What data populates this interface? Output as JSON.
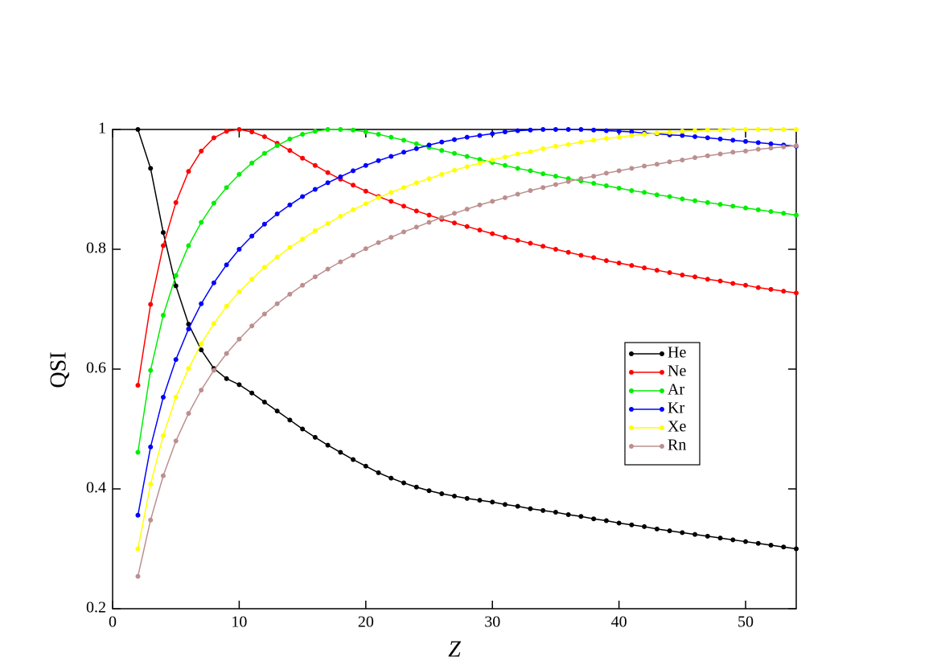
{
  "chart_data": {
    "type": "line",
    "xlabel": "Z",
    "ylabel": "QSI",
    "x": [
      2,
      3,
      4,
      5,
      6,
      7,
      8,
      9,
      10,
      11,
      12,
      13,
      14,
      15,
      16,
      17,
      18,
      19,
      20,
      21,
      22,
      23,
      24,
      25,
      26,
      27,
      28,
      29,
      30,
      31,
      32,
      33,
      34,
      35,
      36,
      37,
      38,
      39,
      40,
      41,
      42,
      43,
      44,
      45,
      46,
      47,
      48,
      49,
      50,
      51,
      52,
      53,
      54
    ],
    "xlim": [
      0,
      54
    ],
    "xticks": [
      0,
      10,
      20,
      30,
      40,
      50
    ],
    "ylim": [
      0.2,
      1.0
    ],
    "yticks": [
      0.2,
      0.4,
      0.6,
      0.8,
      1
    ],
    "legend": "right",
    "series": [
      {
        "name": "He",
        "color": "#000000",
        "values": [
          1.0,
          0.935,
          0.828,
          0.739,
          0.675,
          0.632,
          0.601,
          0.584,
          0.574,
          0.56,
          0.545,
          0.53,
          0.515,
          0.5,
          0.486,
          0.473,
          0.461,
          0.449,
          0.438,
          0.427,
          0.418,
          0.41,
          0.403,
          0.397,
          0.392,
          0.388,
          0.384,
          0.381,
          0.378,
          0.374,
          0.371,
          0.367,
          0.364,
          0.361,
          0.357,
          0.354,
          0.35,
          0.347,
          0.343,
          0.34,
          0.337,
          0.333,
          0.33,
          0.327,
          0.324,
          0.321,
          0.318,
          0.315,
          0.312,
          0.309,
          0.306,
          0.303,
          0.3
        ]
      },
      {
        "name": "Ne",
        "color": "#ff0000",
        "values": [
          0.573,
          0.708,
          0.806,
          0.878,
          0.93,
          0.964,
          0.986,
          0.997,
          1.0,
          0.996,
          0.988,
          0.977,
          0.965,
          0.952,
          0.94,
          0.928,
          0.917,
          0.907,
          0.897,
          0.888,
          0.88,
          0.872,
          0.864,
          0.857,
          0.85,
          0.844,
          0.838,
          0.832,
          0.826,
          0.82,
          0.815,
          0.81,
          0.805,
          0.8,
          0.795,
          0.79,
          0.786,
          0.781,
          0.777,
          0.773,
          0.769,
          0.765,
          0.761,
          0.757,
          0.754,
          0.75,
          0.747,
          0.743,
          0.74,
          0.736,
          0.733,
          0.73,
          0.727
        ]
      },
      {
        "name": "Ar",
        "color": "#00ee00",
        "values": [
          0.461,
          0.598,
          0.69,
          0.756,
          0.806,
          0.845,
          0.877,
          0.903,
          0.925,
          0.944,
          0.96,
          0.973,
          0.984,
          0.992,
          0.997,
          1.0,
          1.0,
          0.999,
          0.996,
          0.992,
          0.987,
          0.982,
          0.976,
          0.97,
          0.965,
          0.96,
          0.955,
          0.95,
          0.945,
          0.94,
          0.935,
          0.931,
          0.926,
          0.922,
          0.918,
          0.914,
          0.91,
          0.906,
          0.902,
          0.898,
          0.895,
          0.891,
          0.888,
          0.884,
          0.881,
          0.878,
          0.875,
          0.872,
          0.869,
          0.866,
          0.863,
          0.86,
          0.857
        ]
      },
      {
        "name": "Kr",
        "color": "#0000ff",
        "values": [
          0.356,
          0.47,
          0.553,
          0.616,
          0.667,
          0.709,
          0.744,
          0.774,
          0.8,
          0.822,
          0.842,
          0.859,
          0.874,
          0.888,
          0.9,
          0.911,
          0.921,
          0.931,
          0.94,
          0.948,
          0.955,
          0.962,
          0.968,
          0.974,
          0.979,
          0.983,
          0.987,
          0.99,
          0.993,
          0.996,
          0.998,
          0.999,
          1.0,
          1.0,
          1.0,
          1.0,
          0.999,
          0.998,
          0.997,
          0.996,
          0.994,
          0.993,
          0.991,
          0.99,
          0.988,
          0.986,
          0.984,
          0.982,
          0.98,
          0.978,
          0.976,
          0.974,
          0.972
        ]
      },
      {
        "name": "Xe",
        "color": "#ffff00",
        "values": [
          0.3,
          0.408,
          0.489,
          0.553,
          0.601,
          0.642,
          0.676,
          0.705,
          0.729,
          0.75,
          0.77,
          0.787,
          0.803,
          0.817,
          0.831,
          0.843,
          0.855,
          0.866,
          0.876,
          0.886,
          0.895,
          0.903,
          0.911,
          0.918,
          0.925,
          0.932,
          0.938,
          0.944,
          0.949,
          0.954,
          0.959,
          0.963,
          0.968,
          0.972,
          0.975,
          0.979,
          0.982,
          0.985,
          0.987,
          0.99,
          0.992,
          0.994,
          0.995,
          0.997,
          0.998,
          0.999,
          0.999,
          1.0,
          1.0,
          1.0,
          1.0,
          1.0,
          1.0
        ]
      },
      {
        "name": "Rn",
        "color": "#bc8f8f",
        "values": [
          0.254,
          0.348,
          0.422,
          0.48,
          0.526,
          0.565,
          0.598,
          0.626,
          0.65,
          0.672,
          0.692,
          0.709,
          0.725,
          0.74,
          0.754,
          0.767,
          0.779,
          0.79,
          0.801,
          0.811,
          0.82,
          0.829,
          0.837,
          0.845,
          0.853,
          0.86,
          0.867,
          0.874,
          0.88,
          0.886,
          0.892,
          0.898,
          0.903,
          0.908,
          0.913,
          0.918,
          0.922,
          0.927,
          0.931,
          0.935,
          0.939,
          0.942,
          0.946,
          0.949,
          0.953,
          0.956,
          0.959,
          0.962,
          0.964,
          0.967,
          0.969,
          0.971,
          0.973
        ]
      }
    ]
  }
}
